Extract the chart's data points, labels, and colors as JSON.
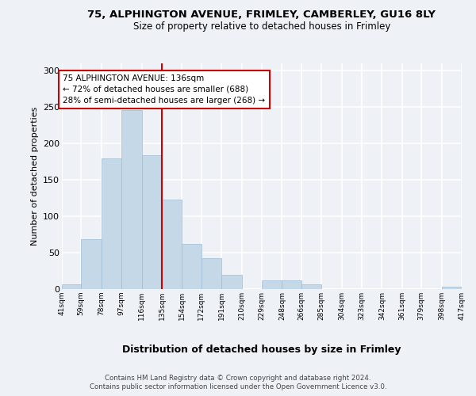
{
  "title_line1": "75, ALPHINGTON AVENUE, FRIMLEY, CAMBERLEY, GU16 8LY",
  "title_line2": "Size of property relative to detached houses in Frimley",
  "xlabel": "Distribution of detached houses by size in Frimley",
  "ylabel": "Number of detached properties",
  "footer_line1": "Contains HM Land Registry data © Crown copyright and database right 2024.",
  "footer_line2": "Contains public sector information licensed under the Open Government Licence v3.0.",
  "bins": [
    41,
    59,
    78,
    97,
    116,
    135,
    154,
    172,
    191,
    210,
    229,
    248,
    266,
    285,
    304,
    323,
    342,
    361,
    379,
    398,
    417
  ],
  "bin_labels": [
    "41sqm",
    "59sqm",
    "78sqm",
    "97sqm",
    "116sqm",
    "135sqm",
    "154sqm",
    "172sqm",
    "191sqm",
    "210sqm",
    "229sqm",
    "248sqm",
    "266sqm",
    "285sqm",
    "304sqm",
    "323sqm",
    "342sqm",
    "361sqm",
    "379sqm",
    "398sqm",
    "417sqm"
  ],
  "values": [
    7,
    68,
    180,
    246,
    184,
    123,
    62,
    42,
    20,
    0,
    12,
    12,
    7,
    0,
    0,
    0,
    0,
    0,
    0,
    3
  ],
  "bar_color": "#c5d8e8",
  "bar_edge_color": "#a0bcd4",
  "vline_x": 135,
  "vline_color": "#cc0000",
  "annotation_text": "75 ALPHINGTON AVENUE: 136sqm\n← 72% of detached houses are smaller (688)\n28% of semi-detached houses are larger (268) →",
  "annotation_box_color": "#ffffff",
  "annotation_box_edge": "#cc0000",
  "ylim": [
    0,
    310
  ],
  "yticks": [
    0,
    50,
    100,
    150,
    200,
    250,
    300
  ],
  "bg_color": "#eef2f7",
  "plot_bg_color": "#eef2f7",
  "grid_color": "#ffffff"
}
